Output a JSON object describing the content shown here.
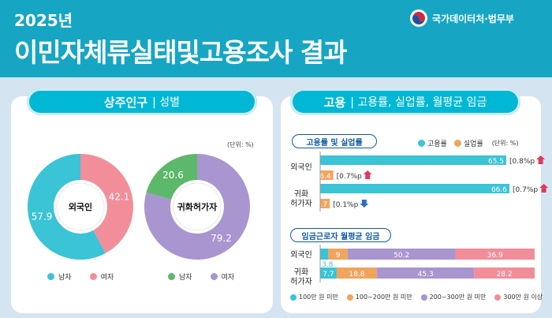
{
  "header": {
    "year": "2025년",
    "title": "이민자체류실태및고용조사 결과",
    "org": "국가데이터처·법무부"
  },
  "left": {
    "title_bold": "상주인구",
    "title_rest": "| 성별",
    "unit": "(단위: %)",
    "legend_male": "남자",
    "legend_female": "여자"
  },
  "right": {
    "title_bold": "고용",
    "title_rest": "| 고용률, 실업률, 월평균 임금",
    "section1": "고용률 및 실업률",
    "legend_emp": "고용률",
    "legend_unemp": "실업률",
    "unit": "(단위: %)",
    "row1": "외국인",
    "row2a": "귀화",
    "row2b": "허가자",
    "section2": "임금근로자 월평균 임금",
    "wage_row1": "외국인",
    "wage_row2a": "귀화",
    "wage_row2b": "허가자",
    "wage_legend": [
      "100만 원 미만",
      "100~200만 원 미만",
      "200~300만 원 미만",
      "300만 원 이상"
    ]
  },
  "colors": {
    "male": "#3bc3d6",
    "female": "#f28e9a",
    "naturalized_male": "#5cb86a",
    "naturalized_female": "#a995cf",
    "employment": "#3bc3d6",
    "unemployment": "#f2a45d",
    "wage": [
      "#3bc3d6",
      "#f2a45d",
      "#a995cf",
      "#f28e9a"
    ]
  },
  "chart_data": [
    {
      "type": "pie",
      "title": "외국인",
      "categories": [
        "남자",
        "여자"
      ],
      "values": [
        57.9,
        42.1
      ]
    },
    {
      "type": "pie",
      "title": "귀화허가자",
      "categories": [
        "남자",
        "여자"
      ],
      "values": [
        20.6,
        79.2
      ]
    },
    {
      "type": "bar",
      "categories": [
        "외국인",
        "귀화 허가자"
      ],
      "series": [
        {
          "name": "고용률",
          "values": [
            65.5,
            66.6
          ],
          "change": [
            "[0.8%p",
            "[0.7%p"
          ],
          "direction": [
            "up",
            "up"
          ]
        },
        {
          "name": "실업률",
          "values": [
            6.4,
            4.7
          ],
          "change": [
            "[0.7%p",
            "[0.1%p"
          ],
          "direction": [
            "up",
            "down"
          ]
        }
      ],
      "xlim": [
        0,
        100
      ]
    },
    {
      "type": "bar",
      "stacked": true,
      "categories": [
        "외국인",
        "귀화 허가자"
      ],
      "series": [
        {
          "name": "100만 원 미만",
          "values": [
            3.8,
            7.7
          ]
        },
        {
          "name": "100~200만 원 미만",
          "values": [
            9.0,
            18.8
          ]
        },
        {
          "name": "200~300만 원 미만",
          "values": [
            50.2,
            45.3
          ]
        },
        {
          "name": "300만 원 이상",
          "values": [
            36.9,
            28.2
          ]
        }
      ]
    }
  ]
}
